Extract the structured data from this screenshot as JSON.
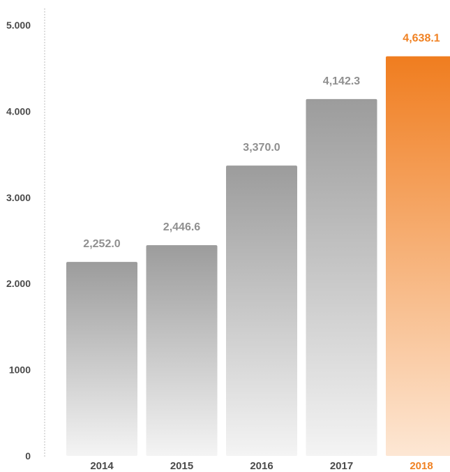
{
  "chart_data": {
    "type": "bar",
    "title": "",
    "xlabel": "",
    "ylabel": "",
    "categories": [
      "2014",
      "2015",
      "2016",
      "2017",
      "2018"
    ],
    "values": [
      2252.0,
      2446.6,
      3370.0,
      4142.3,
      4638.1
    ],
    "data_labels": [
      "2,252.0",
      "2,446.6",
      "3,370.0",
      "4,142.3",
      "4,638.1"
    ],
    "ylim": [
      0,
      5000
    ],
    "yticks": [
      0,
      1000,
      2000,
      3000,
      4000,
      5000
    ],
    "ytick_labels": [
      "0",
      "1000",
      "2.000",
      "3.000",
      "4.000",
      "5.000"
    ],
    "highlight_index": 4,
    "grid": false,
    "colors": {
      "bar_top": "#9c9c9c",
      "bar_bottom": "#f4f4f4",
      "highlight_top": "#f07d1f",
      "highlight_bottom": "#fde7d4",
      "highlight_text": "#f08122",
      "axis_text": "#4a4a4a",
      "data_label_text": "#8f8f8f",
      "axis_line": "#bdbdbd"
    }
  }
}
